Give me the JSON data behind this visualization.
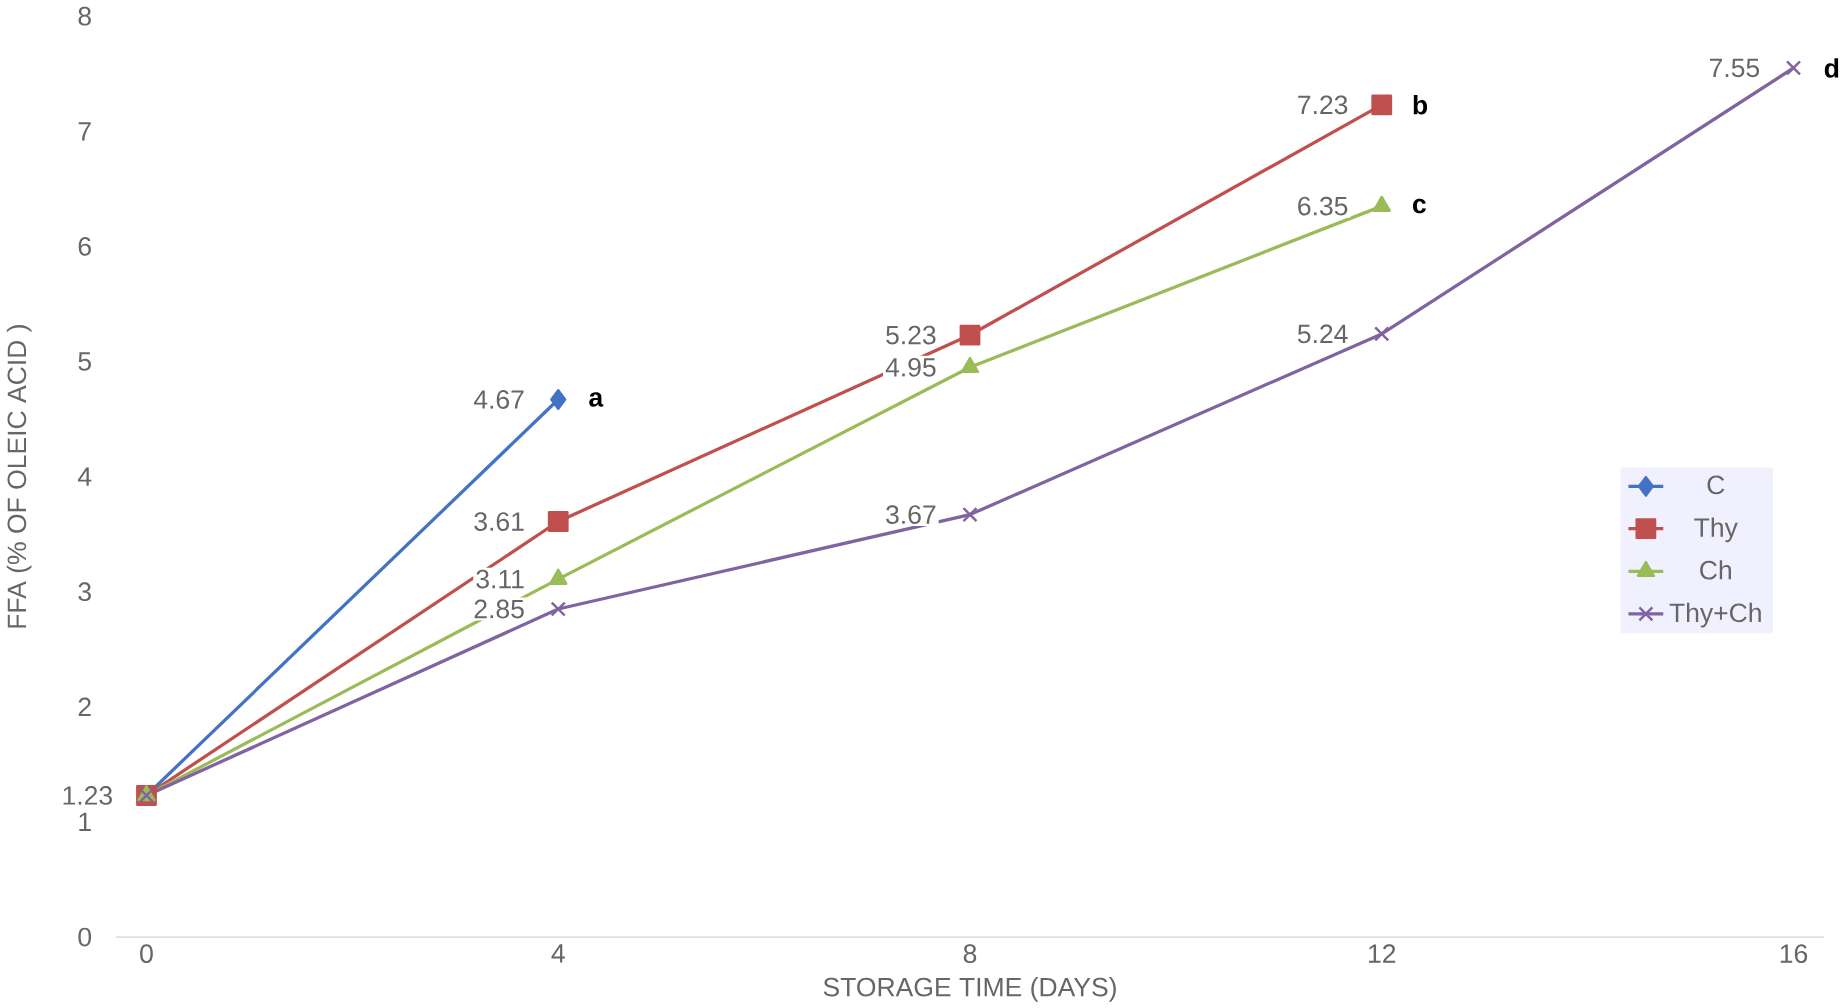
{
  "chart_data": {
    "type": "line",
    "xlabel": "STORAGE TIME (DAYS)",
    "ylabel": "FFA (% OF OLEIC ACID )",
    "xlim": [
      -0.3,
      16.3
    ],
    "xticks": [
      0,
      4,
      8,
      12,
      16
    ],
    "ylim": [
      0,
      8
    ],
    "yticks": [
      0,
      1,
      2,
      3,
      4,
      5,
      6,
      7,
      8
    ],
    "grid": false,
    "legend": "right",
    "line_style": "solid",
    "series": [
      {
        "name": "C",
        "color": "#4472c4",
        "marker": "diamond",
        "x": [
          0,
          4
        ],
        "values": [
          1.23,
          4.67
        ],
        "value_labels": [
          null,
          "4.67"
        ]
      },
      {
        "name": "Thy",
        "color": "#c0504d",
        "marker": "square",
        "x": [
          0,
          4,
          8,
          12
        ],
        "values": [
          1.23,
          3.61,
          5.23,
          7.23
        ],
        "value_labels": [
          null,
          "3.61",
          "5.23",
          "7.23"
        ]
      },
      {
        "name": "Ch",
        "color": "#9bbb59",
        "marker": "triangle",
        "x": [
          0,
          4,
          8,
          12
        ],
        "values": [
          1.23,
          3.11,
          4.95,
          6.35
        ],
        "value_labels": [
          null,
          "3.11",
          "4.95",
          "6.35"
        ]
      },
      {
        "name": "Thy+Ch",
        "color": "#8064a2",
        "marker": "cross",
        "x": [
          0,
          4,
          8,
          12,
          16
        ],
        "values": [
          1.23,
          2.85,
          3.67,
          5.24,
          7.55
        ],
        "value_labels": [
          "1.23",
          "2.85",
          "3.67",
          "5.24",
          "7.55"
        ]
      }
    ],
    "annotations": [
      {
        "text": "a",
        "x": 4,
        "y": 4.67
      },
      {
        "text": "b",
        "x": 12,
        "y": 7.23
      },
      {
        "text": "c",
        "x": 12,
        "y": 6.35
      },
      {
        "text": "d",
        "x": 16,
        "y": 7.55
      }
    ]
  }
}
